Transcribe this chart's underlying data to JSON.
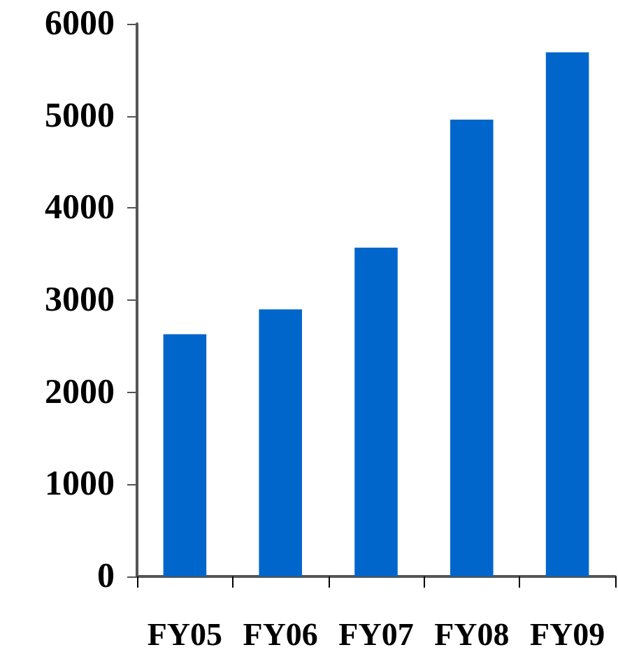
{
  "chart_data": {
    "type": "bar",
    "categories": [
      "FY05",
      "FY06",
      "FY07",
      "FY08",
      "FY09"
    ],
    "values": [
      2630,
      2900,
      3570,
      4960,
      5690
    ],
    "color": "#0066cc",
    "ylim": [
      0,
      6000
    ],
    "yticks": [
      0,
      1000,
      2000,
      3000,
      4000,
      5000,
      6000
    ],
    "grid": false
  }
}
